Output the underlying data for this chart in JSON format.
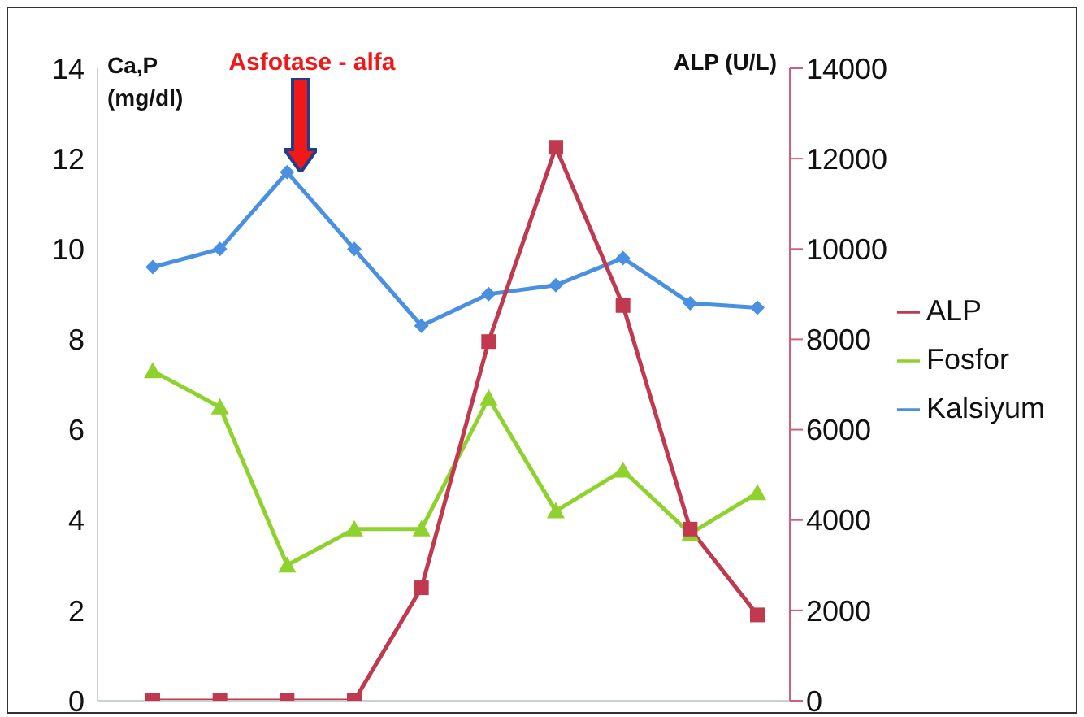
{
  "chart_data": {
    "type": "line",
    "ylabel": "Ca,P (mg/dl)",
    "y2label": "ALP (U/L)",
    "annotations": [
      "Asfotase - alfa"
    ],
    "categories": [
      null,
      null,
      null,
      null,
      null,
      null,
      null,
      null,
      null,
      null
    ],
    "series": [
      {
        "name": "Kalsiyum",
        "color": "#4a90e2",
        "marker": "diamond",
        "values": [
          9.6,
          10.0,
          11.7,
          10.0,
          8.3,
          9.0,
          9.2,
          9.8,
          8.8,
          8.7
        ]
      },
      {
        "name": "Fosfor",
        "color": "#8fd22e",
        "marker": "triangle",
        "values": [
          7.3,
          6.5,
          3.0,
          3.8,
          3.8,
          6.7,
          4.2,
          5.1,
          3.7,
          4.6
        ]
      },
      {
        "name": "ALP",
        "color": "#c0394e",
        "marker": "square",
        "axis": "y2",
        "values": [
          0,
          0,
          0,
          0,
          2500,
          7950,
          12250,
          8750,
          3800,
          1900
        ]
      }
    ],
    "ylim": [
      0,
      14
    ],
    "yticks": [
      0,
      2,
      4,
      6,
      8,
      10,
      12,
      14
    ],
    "y2lim": [
      0,
      14000
    ],
    "y2ticks": [
      0,
      2000,
      4000,
      6000,
      8000,
      10000,
      12000,
      14000
    ],
    "legend": "right",
    "grid": false
  }
}
